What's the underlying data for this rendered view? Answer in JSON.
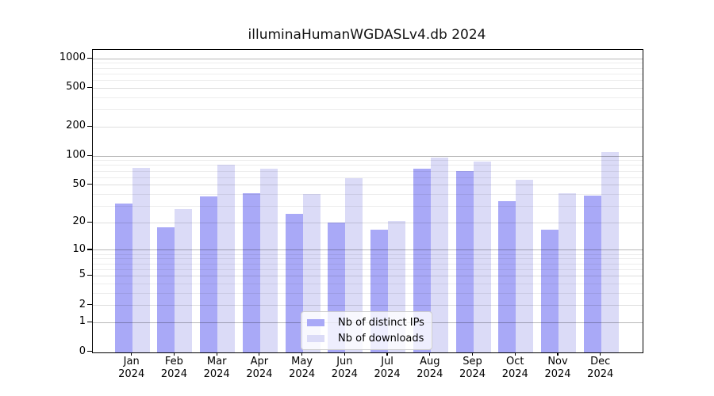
{
  "figure": {
    "title": "illuminaHumanWGDASLv4.db 2024"
  },
  "chart_data": {
    "type": "bar",
    "title": "illuminaHumanWGDASLv4.db 2024",
    "months": [
      "Jan",
      "Feb",
      "Mar",
      "Apr",
      "May",
      "Jun",
      "Jul",
      "Aug",
      "Sep",
      "Oct",
      "Nov",
      "Dec"
    ],
    "year": "2024",
    "categories": [
      "Jan 2024",
      "Feb 2024",
      "Mar 2024",
      "Apr 2024",
      "May 2024",
      "Jun 2024",
      "Jul 2024",
      "Aug 2024",
      "Sep 2024",
      "Oct 2024",
      "Nov 2024",
      "Dec 2024"
    ],
    "series": [
      {
        "name": "Nb of distinct IPs",
        "color": "#a9a9f7",
        "values": [
          32,
          18,
          38,
          41,
          25,
          20,
          17,
          74,
          70,
          34,
          17,
          39
        ]
      },
      {
        "name": "Nb of downloads",
        "color": "#dbdbf7",
        "values": [
          76,
          28,
          81,
          74,
          40,
          59,
          21,
          97,
          88,
          57,
          41,
          110
        ]
      }
    ],
    "yscale": "log1p",
    "ylim": [
      0,
      1230
    ],
    "y_major_ticks": [
      0,
      1,
      2,
      5,
      10,
      20,
      50,
      100,
      200,
      500,
      1000
    ],
    "y_minor_gridlines": [
      3,
      4,
      6,
      7,
      8,
      9,
      30,
      40,
      60,
      70,
      80,
      90,
      300,
      400,
      600,
      700,
      800,
      900
    ],
    "grid": true,
    "legend": {
      "position": "inside-bottom-center",
      "labels": [
        "Nb of distinct IPs",
        "Nb of downloads"
      ]
    }
  }
}
